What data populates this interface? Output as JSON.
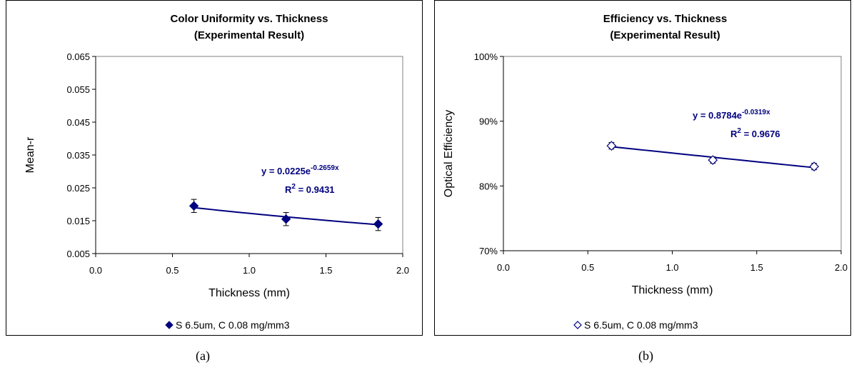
{
  "chart_data": [
    {
      "type": "scatter",
      "title": "Color Uniformity vs. Thickness",
      "subtitle": "(Experimental Result)",
      "xlabel": "Thickness (mm)",
      "ylabel": "Mean-r",
      "xlim": [
        0,
        2
      ],
      "ylim": [
        0.005,
        0.065
      ],
      "x_ticks": [
        "0.0",
        "0.5",
        "1.0",
        "1.5",
        "2.0"
      ],
      "y_ticks": [
        "0.005",
        "0.015",
        "0.025",
        "0.035",
        "0.045",
        "0.055",
        "0.065"
      ],
      "grid": false,
      "legend_position": "bottom",
      "series": [
        {
          "name": "S 6.5um, C 0.08 mg/mm3",
          "marker": "filled-diamond",
          "color": "#000080",
          "x": [
            0.64,
            1.24,
            1.84
          ],
          "y": [
            0.0195,
            0.0155,
            0.014
          ],
          "error": [
            0.002,
            0.002,
            0.002
          ]
        }
      ],
      "trendline": {
        "type": "exponential",
        "a": 0.0225,
        "b": -0.2659,
        "equation_base": "y = 0.0225e",
        "equation_exp": "-0.2659x",
        "r2_label": "R",
        "r2_sup": "2",
        "r2_value": " = 0.9431"
      }
    },
    {
      "type": "scatter",
      "title": "Efficiency vs. Thickness",
      "subtitle": "(Experimental Result)",
      "xlabel": "Thickness (mm)",
      "ylabel": "Optical Efficiency",
      "xlim": [
        0,
        2
      ],
      "ylim": [
        0.7,
        1.0
      ],
      "x_ticks": [
        "0.0",
        "0.5",
        "1.0",
        "1.5",
        "2.0"
      ],
      "y_ticks": [
        "70%",
        "80%",
        "90%",
        "100%"
      ],
      "grid": false,
      "legend_position": "bottom",
      "series": [
        {
          "name": "S 6.5um, C 0.08 mg/mm3",
          "marker": "open-diamond",
          "color": "#000080",
          "x": [
            0.64,
            1.24,
            1.84
          ],
          "y": [
            0.862,
            0.84,
            0.83
          ],
          "error": [
            0.005,
            0.005,
            0.005
          ]
        }
      ],
      "trendline": {
        "type": "exponential",
        "a": 0.8784,
        "b": -0.0319,
        "equation_base": "y = 0.8784e",
        "equation_exp": "-0.0319x",
        "r2_label": "R",
        "r2_sup": "2",
        "r2_value": " = 0.9676"
      }
    }
  ],
  "captions": [
    "(a)",
    "(b)"
  ]
}
